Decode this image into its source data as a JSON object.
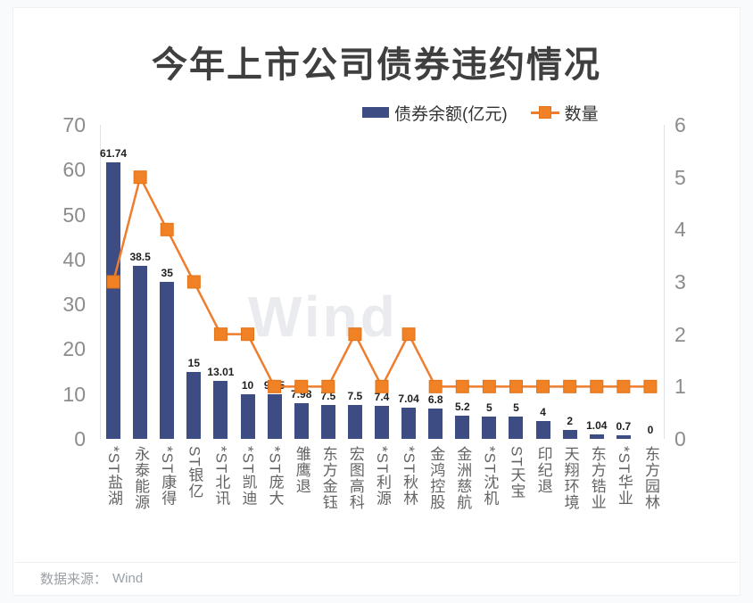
{
  "page": {
    "title": "今年上市公司债券违约情况",
    "watermark": "Wind",
    "source_label": "数据来源：",
    "source_value": "Wind"
  },
  "colors": {
    "bar": "#3d4c82",
    "line": "#ee7e2e",
    "marker_fill": "#f08125",
    "marker_border": "#e1731a"
  },
  "axes": {
    "left": {
      "ticks": [
        0,
        10,
        20,
        30,
        40,
        50,
        60,
        70
      ],
      "max": 70
    },
    "right": {
      "ticks": [
        0,
        1,
        2,
        3,
        4,
        5,
        6
      ],
      "max": 6
    }
  },
  "chart_data": {
    "type": "bar+line",
    "title": "今年上市公司债券违约情况",
    "categories": [
      "*ST盐湖",
      "永泰能源",
      "*ST康得",
      "ST银亿",
      "*ST北讯",
      "*ST凯迪",
      "*ST庞大",
      "雏鹰退",
      "东方金钰",
      "宏图高科",
      "*ST利源",
      "*ST秋林",
      "金鸿控股",
      "金洲慈航",
      "*ST沈机",
      "ST天宝",
      "印纪退",
      "天翔环境",
      "东方锆业",
      "*ST华业",
      "东方园林"
    ],
    "series": [
      {
        "name": "债券余额(亿元)",
        "type": "bar",
        "axis": "left",
        "color": "#3d4c82",
        "values": [
          61.74,
          38.5,
          35,
          15,
          13.01,
          10,
          9.85,
          7.98,
          7.5,
          7.5,
          7.4,
          7.04,
          6.8,
          5.2,
          5,
          5,
          4,
          2,
          1.04,
          0.7,
          0
        ]
      },
      {
        "name": "数量",
        "type": "line",
        "axis": "right",
        "color": "#ee7e2e",
        "values": [
          3,
          5,
          4,
          3,
          2,
          2,
          1,
          1,
          1,
          2,
          1,
          2,
          1,
          1,
          1,
          1,
          1,
          1,
          1,
          1,
          1
        ]
      }
    ],
    "left_ylim": [
      0,
      70
    ],
    "right_ylim": [
      0,
      6
    ],
    "grid": false,
    "legend_position": "top",
    "value_labels": "bar-series"
  }
}
